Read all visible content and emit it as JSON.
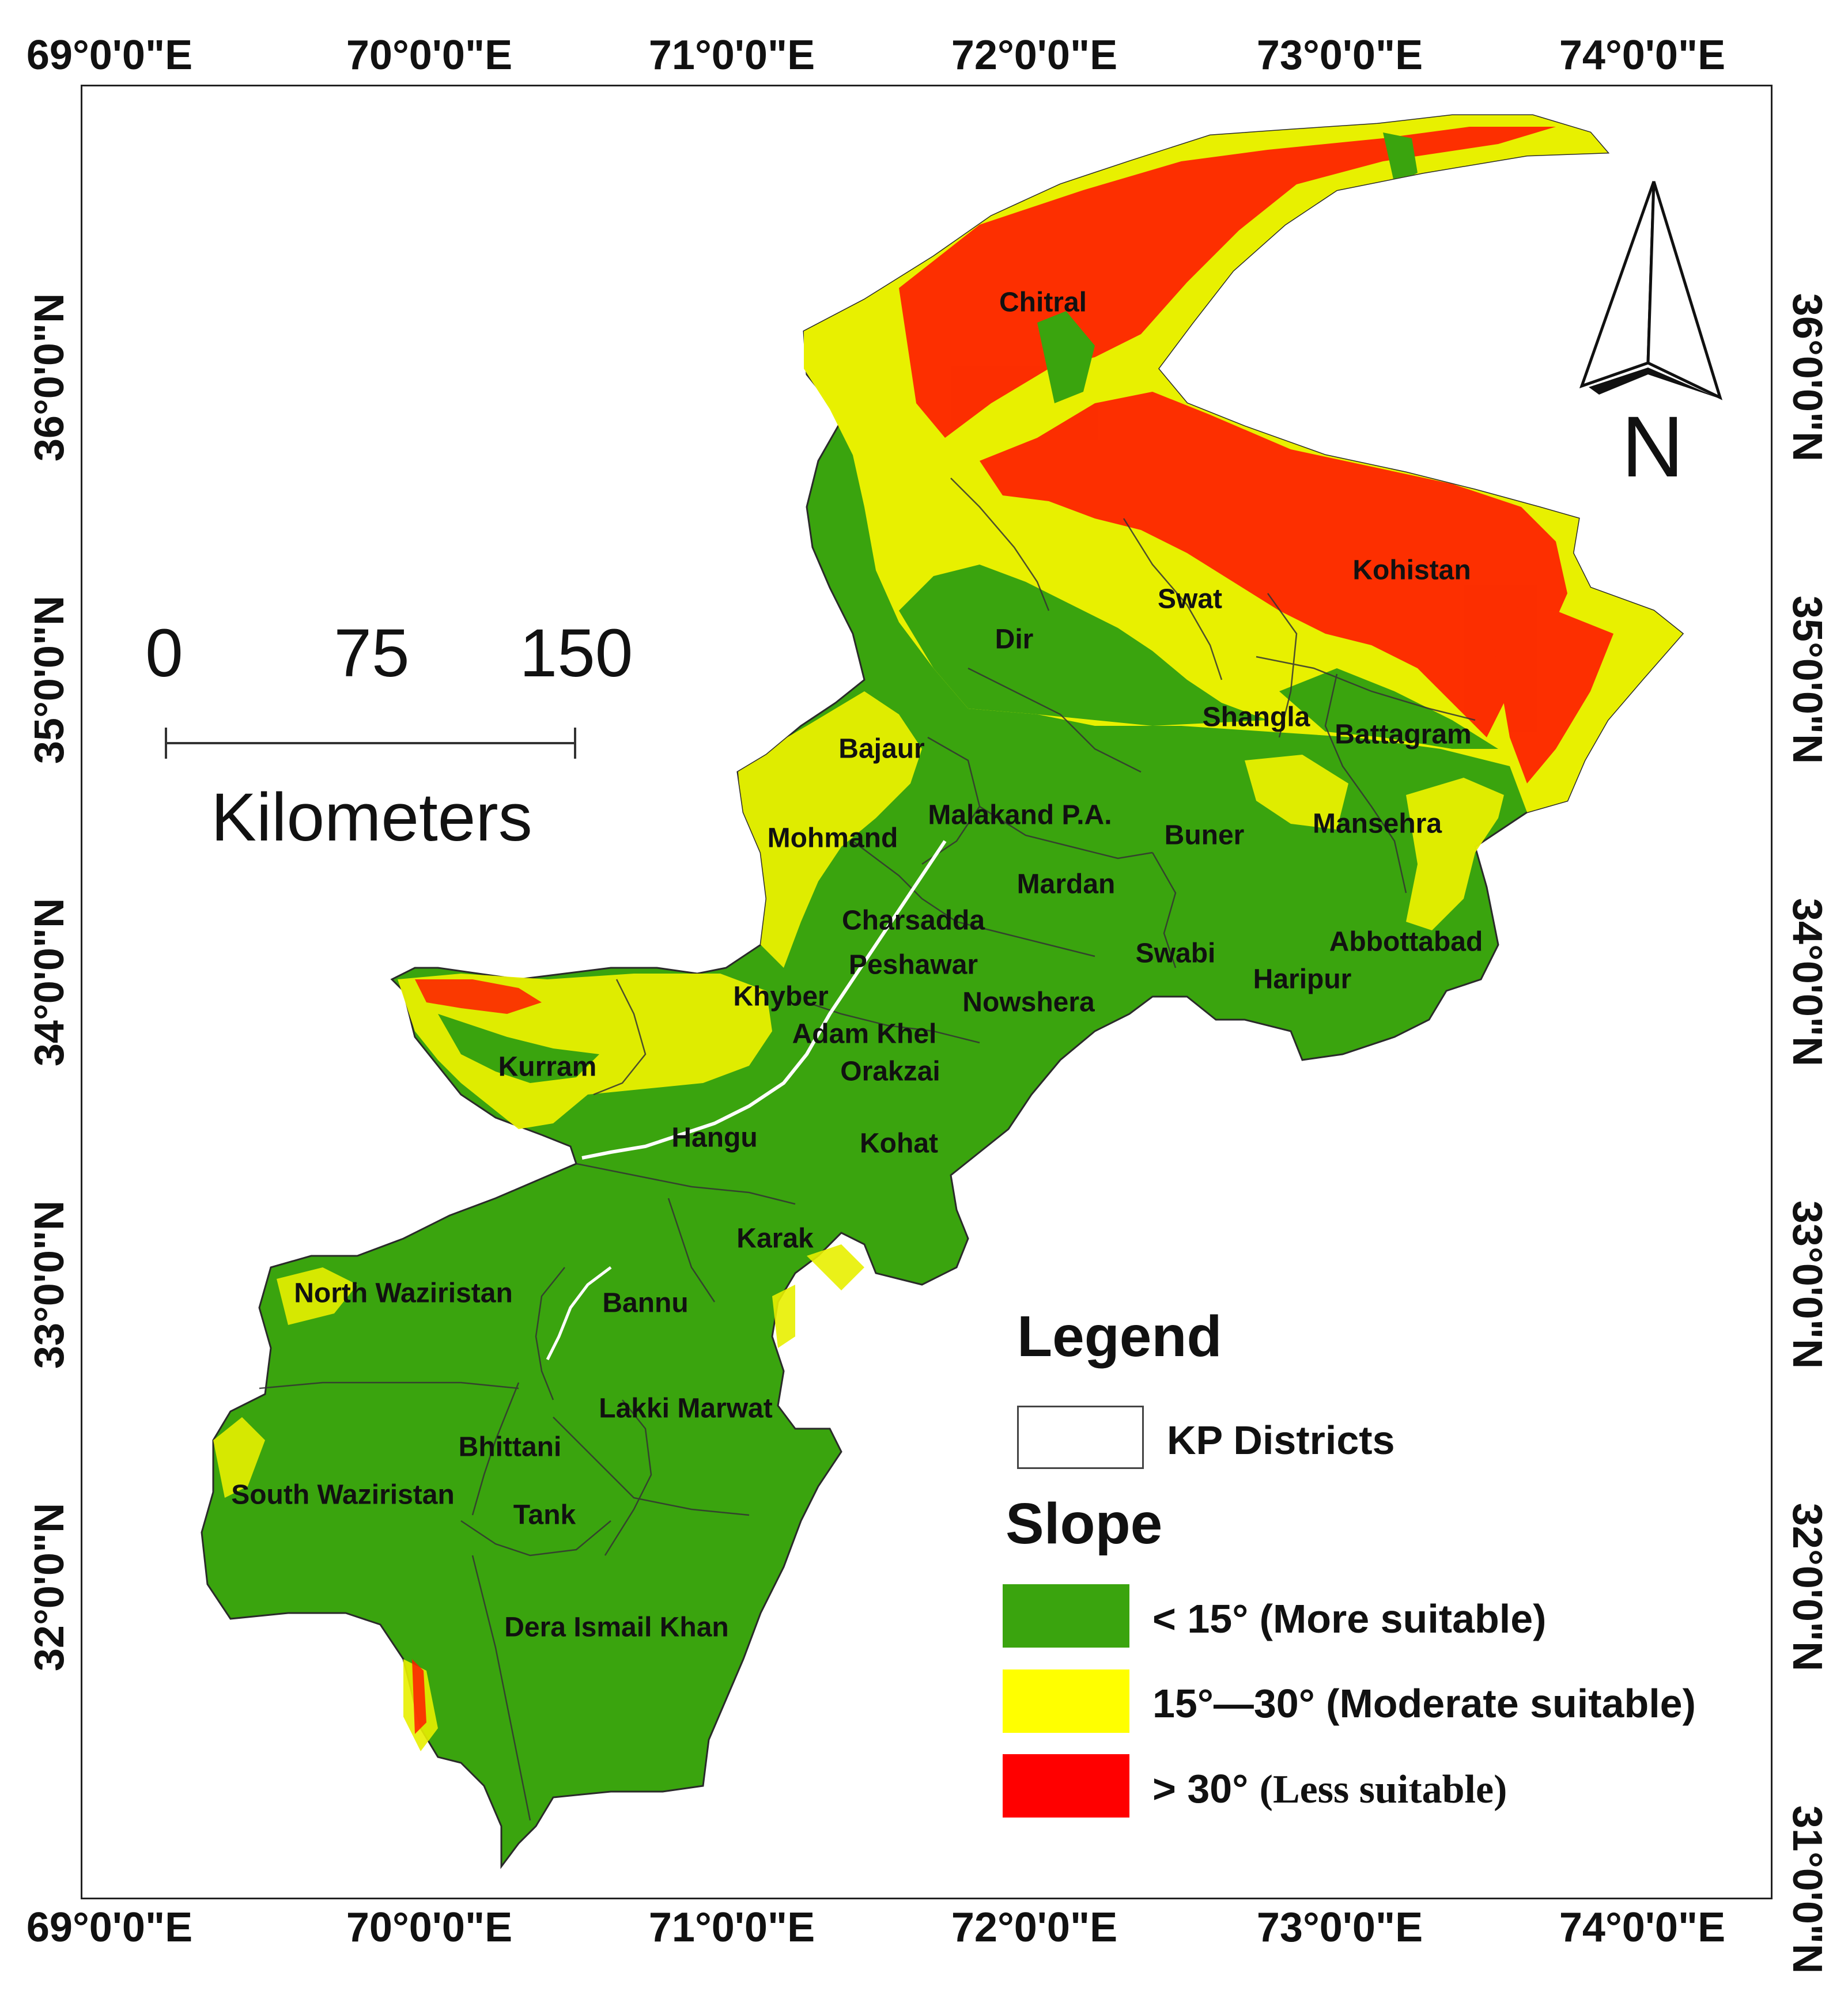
{
  "colors": {
    "more": "#3aa40e",
    "moderate": "#ffff00",
    "less": "#ff0000",
    "frame": "#222222"
  },
  "longitude_labels": [
    "69°0'0\"E",
    "70°0'0\"E",
    "71°0'0\"E",
    "72°0'0\"E",
    "73°0'0\"E",
    "74°0'0\"E"
  ],
  "latitude_labels": [
    "36°0'0\"N",
    "35°0'0\"N",
    "34°0'0\"N",
    "33°0'0\"N",
    "32°0'0\"N"
  ],
  "latitude_extra_right": "31°0'0\"N",
  "north_arrow": {
    "letter": "N",
    "icon": "north-arrow-icon"
  },
  "scale_bar": {
    "ticks": [
      "0",
      "75",
      "150"
    ],
    "unit": "Kilometers"
  },
  "districts": [
    {
      "name": "Chitral"
    },
    {
      "name": "Kohistan"
    },
    {
      "name": "Swat"
    },
    {
      "name": "Dir"
    },
    {
      "name": "Shangla"
    },
    {
      "name": "Battagram"
    },
    {
      "name": "Bajaur"
    },
    {
      "name": "Malakand P.A."
    },
    {
      "name": "Mohmand"
    },
    {
      "name": "Buner"
    },
    {
      "name": "Mansehra"
    },
    {
      "name": "Mardan"
    },
    {
      "name": "Charsadda"
    },
    {
      "name": "Abbottabad"
    },
    {
      "name": "Swabi"
    },
    {
      "name": "Peshawar"
    },
    {
      "name": "Haripur"
    },
    {
      "name": "Khyber"
    },
    {
      "name": "Nowshera"
    },
    {
      "name": "Adam Khel"
    },
    {
      "name": "Orakzai"
    },
    {
      "name": "Kurram"
    },
    {
      "name": "Hangu"
    },
    {
      "name": "Kohat"
    },
    {
      "name": "Karak"
    },
    {
      "name": "North Waziristan"
    },
    {
      "name": "Bannu"
    },
    {
      "name": "Lakki Marwat"
    },
    {
      "name": "Bhittani"
    },
    {
      "name": "South Waziristan"
    },
    {
      "name": "Tank"
    },
    {
      "name": "Dera Ismail Khan"
    }
  ],
  "legend": {
    "title": "Legend",
    "boundary_label": "KP Districts",
    "slope_title": "Slope",
    "classes": [
      {
        "key": "more",
        "label": "< 15° (More suitable)"
      },
      {
        "key": "moderate",
        "label": "15°—30° (Moderate suitable)"
      },
      {
        "key": "less",
        "label_prefix": "> 30°",
        "label_suffix": "(Less suitable)"
      }
    ]
  }
}
